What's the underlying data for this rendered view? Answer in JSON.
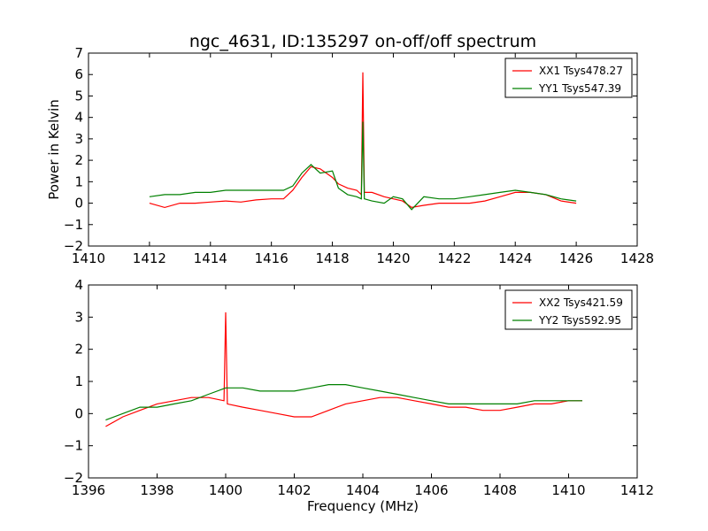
{
  "figure": {
    "title": "ngc_4631, ID:135297 on-off/off spectrum",
    "xlabel": "Frequency (MHz)"
  },
  "chart_data": [
    {
      "type": "line",
      "title": "ngc_4631, ID:135297 on-off/off spectrum",
      "xlabel": "",
      "ylabel": "Power in Kelvin",
      "xlim": [
        1410,
        1428
      ],
      "ylim": [
        -2,
        7
      ],
      "xticks": [
        1410,
        1412,
        1414,
        1416,
        1418,
        1420,
        1422,
        1424,
        1426,
        1428
      ],
      "yticks": [
        -2,
        -1,
        0,
        1,
        2,
        3,
        4,
        5,
        6,
        7
      ],
      "grid": false,
      "legend": "top-right",
      "series": [
        {
          "name": "XX1 Tsys478.27",
          "color": "#ff0000",
          "points": [
            [
              1412.0,
              0.0
            ],
            [
              1412.5,
              -0.2
            ],
            [
              1413.0,
              0.0
            ],
            [
              1413.5,
              0.0
            ],
            [
              1414.0,
              0.05
            ],
            [
              1414.5,
              0.1
            ],
            [
              1415.0,
              0.05
            ],
            [
              1415.5,
              0.15
            ],
            [
              1416.0,
              0.2
            ],
            [
              1416.4,
              0.2
            ],
            [
              1416.7,
              0.6
            ],
            [
              1417.0,
              1.2
            ],
            [
              1417.3,
              1.7
            ],
            [
              1417.6,
              1.6
            ],
            [
              1418.0,
              1.2
            ],
            [
              1418.2,
              0.9
            ],
            [
              1418.5,
              0.7
            ],
            [
              1418.8,
              0.6
            ],
            [
              1418.95,
              0.4
            ],
            [
              1419.0,
              6.1
            ],
            [
              1419.05,
              0.5
            ],
            [
              1419.3,
              0.5
            ],
            [
              1419.7,
              0.3
            ],
            [
              1420.0,
              0.2
            ],
            [
              1420.3,
              0.1
            ],
            [
              1420.6,
              -0.2
            ],
            [
              1421.0,
              -0.1
            ],
            [
              1421.5,
              0.0
            ],
            [
              1422.0,
              0.0
            ],
            [
              1422.5,
              0.0
            ],
            [
              1423.0,
              0.1
            ],
            [
              1423.5,
              0.3
            ],
            [
              1424.0,
              0.5
            ],
            [
              1424.5,
              0.5
            ],
            [
              1425.0,
              0.4
            ],
            [
              1425.5,
              0.1
            ],
            [
              1426.0,
              0.0
            ]
          ]
        },
        {
          "name": "YY1 Tsys547.39",
          "color": "#008000",
          "points": [
            [
              1412.0,
              0.3
            ],
            [
              1412.5,
              0.4
            ],
            [
              1413.0,
              0.4
            ],
            [
              1413.5,
              0.5
            ],
            [
              1414.0,
              0.5
            ],
            [
              1414.5,
              0.6
            ],
            [
              1415.0,
              0.6
            ],
            [
              1415.5,
              0.6
            ],
            [
              1416.0,
              0.6
            ],
            [
              1416.4,
              0.6
            ],
            [
              1416.7,
              0.8
            ],
            [
              1417.0,
              1.4
            ],
            [
              1417.3,
              1.8
            ],
            [
              1417.6,
              1.4
            ],
            [
              1418.0,
              1.5
            ],
            [
              1418.2,
              0.7
            ],
            [
              1418.5,
              0.4
            ],
            [
              1418.8,
              0.3
            ],
            [
              1418.95,
              0.2
            ],
            [
              1419.0,
              3.8
            ],
            [
              1419.05,
              0.2
            ],
            [
              1419.3,
              0.1
            ],
            [
              1419.7,
              0.0
            ],
            [
              1420.0,
              0.3
            ],
            [
              1420.3,
              0.2
            ],
            [
              1420.6,
              -0.3
            ],
            [
              1421.0,
              0.3
            ],
            [
              1421.5,
              0.2
            ],
            [
              1422.0,
              0.2
            ],
            [
              1422.5,
              0.3
            ],
            [
              1423.0,
              0.4
            ],
            [
              1423.5,
              0.5
            ],
            [
              1424.0,
              0.6
            ],
            [
              1424.5,
              0.5
            ],
            [
              1425.0,
              0.4
            ],
            [
              1425.5,
              0.2
            ],
            [
              1426.0,
              0.1
            ]
          ]
        }
      ]
    },
    {
      "type": "line",
      "title": "",
      "xlabel": "Frequency (MHz)",
      "ylabel": "",
      "xlim": [
        1396,
        1412
      ],
      "ylim": [
        -2,
        4
      ],
      "xticks": [
        1396,
        1398,
        1400,
        1402,
        1404,
        1406,
        1408,
        1410,
        1412
      ],
      "yticks": [
        -2,
        -1,
        0,
        1,
        2,
        3,
        4
      ],
      "grid": false,
      "legend": "top-right",
      "series": [
        {
          "name": "XX2 Tsys421.59",
          "color": "#ff0000",
          "points": [
            [
              1396.5,
              -0.4
            ],
            [
              1397.0,
              -0.1
            ],
            [
              1397.5,
              0.1
            ],
            [
              1398.0,
              0.3
            ],
            [
              1398.5,
              0.4
            ],
            [
              1399.0,
              0.5
            ],
            [
              1399.5,
              0.5
            ],
            [
              1399.95,
              0.4
            ],
            [
              1400.0,
              3.15
            ],
            [
              1400.05,
              0.3
            ],
            [
              1400.5,
              0.2
            ],
            [
              1401.0,
              0.1
            ],
            [
              1401.5,
              0.0
            ],
            [
              1402.0,
              -0.1
            ],
            [
              1402.5,
              -0.1
            ],
            [
              1403.0,
              0.1
            ],
            [
              1403.5,
              0.3
            ],
            [
              1404.0,
              0.4
            ],
            [
              1404.5,
              0.5
            ],
            [
              1405.0,
              0.5
            ],
            [
              1405.5,
              0.4
            ],
            [
              1406.0,
              0.3
            ],
            [
              1406.5,
              0.2
            ],
            [
              1407.0,
              0.2
            ],
            [
              1407.5,
              0.1
            ],
            [
              1408.0,
              0.1
            ],
            [
              1408.5,
              0.2
            ],
            [
              1409.0,
              0.3
            ],
            [
              1409.5,
              0.3
            ],
            [
              1410.0,
              0.4
            ],
            [
              1410.4,
              0.4
            ]
          ]
        },
        {
          "name": "YY2 Tsys592.95",
          "color": "#008000",
          "points": [
            [
              1396.5,
              -0.2
            ],
            [
              1397.0,
              0.0
            ],
            [
              1397.5,
              0.2
            ],
            [
              1398.0,
              0.2
            ],
            [
              1398.5,
              0.3
            ],
            [
              1399.0,
              0.4
            ],
            [
              1399.5,
              0.6
            ],
            [
              1400.0,
              0.8
            ],
            [
              1400.5,
              0.8
            ],
            [
              1401.0,
              0.7
            ],
            [
              1401.5,
              0.7
            ],
            [
              1402.0,
              0.7
            ],
            [
              1402.5,
              0.8
            ],
            [
              1403.0,
              0.9
            ],
            [
              1403.5,
              0.9
            ],
            [
              1404.0,
              0.8
            ],
            [
              1404.5,
              0.7
            ],
            [
              1405.0,
              0.6
            ],
            [
              1405.5,
              0.5
            ],
            [
              1406.0,
              0.4
            ],
            [
              1406.5,
              0.3
            ],
            [
              1407.0,
              0.3
            ],
            [
              1407.5,
              0.3
            ],
            [
              1408.0,
              0.3
            ],
            [
              1408.5,
              0.3
            ],
            [
              1409.0,
              0.4
            ],
            [
              1409.5,
              0.4
            ],
            [
              1410.0,
              0.4
            ],
            [
              1410.4,
              0.4
            ]
          ]
        }
      ]
    }
  ]
}
